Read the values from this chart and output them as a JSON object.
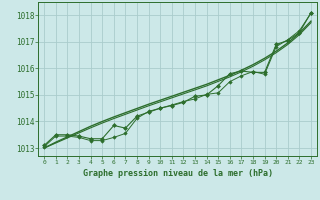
{
  "title": "Graphe pression niveau de la mer (hPa)",
  "xlabel_hours": [
    0,
    1,
    2,
    3,
    4,
    5,
    6,
    7,
    8,
    9,
    10,
    11,
    12,
    13,
    14,
    15,
    16,
    17,
    18,
    19,
    20,
    21,
    22,
    23
  ],
  "ylim": [
    1012.7,
    1018.5
  ],
  "yticks": [
    1013,
    1014,
    1015,
    1016,
    1017,
    1018
  ],
  "background_color": "#cce8e8",
  "grid_color": "#aacccc",
  "line_color": "#2d6e2d",
  "series_zigzag1": [
    1013.1,
    1013.5,
    1013.5,
    1013.45,
    1013.35,
    1013.35,
    1013.85,
    1013.75,
    1014.2,
    1014.35,
    1014.5,
    1014.6,
    1014.72,
    1014.95,
    1015.0,
    1015.35,
    1015.8,
    1015.9,
    1015.85,
    1015.85,
    1016.9,
    1017.05,
    1017.35,
    1018.1
  ],
  "series_zigzag2": [
    1013.05,
    1013.45,
    1013.45,
    1013.4,
    1013.28,
    1013.28,
    1013.4,
    1013.55,
    1014.12,
    1014.38,
    1014.5,
    1014.62,
    1014.75,
    1014.85,
    1015.02,
    1015.08,
    1015.5,
    1015.72,
    1015.88,
    1015.78,
    1016.82,
    1017.08,
    1017.42,
    1018.08
  ],
  "series_smooth1": [
    1013.0,
    1013.22,
    1013.42,
    1013.62,
    1013.82,
    1014.0,
    1014.17,
    1014.33,
    1014.49,
    1014.65,
    1014.8,
    1014.95,
    1015.1,
    1015.25,
    1015.4,
    1015.57,
    1015.74,
    1015.93,
    1016.14,
    1016.38,
    1016.65,
    1016.96,
    1017.33,
    1017.78
  ],
  "series_smooth2": [
    1013.0,
    1013.19,
    1013.38,
    1013.57,
    1013.76,
    1013.94,
    1014.11,
    1014.27,
    1014.43,
    1014.59,
    1014.74,
    1014.89,
    1015.04,
    1015.19,
    1015.34,
    1015.51,
    1015.68,
    1015.87,
    1016.08,
    1016.32,
    1016.59,
    1016.9,
    1017.27,
    1017.72
  ]
}
